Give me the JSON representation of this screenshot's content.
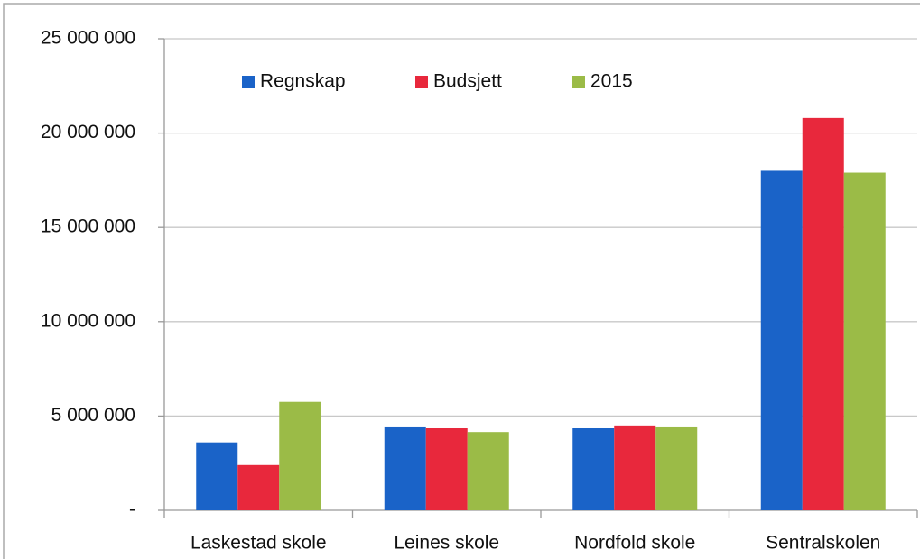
{
  "chart_data": {
    "type": "bar",
    "categories": [
      "Laskestad skole",
      "Leines skole",
      "Nordfold skole",
      "Sentralskolen"
    ],
    "series": [
      {
        "name": "Regnskap",
        "color": "#1a63c8",
        "values": [
          3600000,
          4400000,
          4350000,
          18000000
        ]
      },
      {
        "name": "Budsjett",
        "color": "#e8283c",
        "values": [
          2400000,
          4350000,
          4500000,
          20800000
        ]
      },
      {
        "name": "2015",
        "color": "#9bbb47",
        "values": [
          5750000,
          4150000,
          4400000,
          17900000
        ]
      }
    ],
    "ylim": [
      0,
      25000000
    ],
    "yticks": [
      {
        "value": 0,
        "label": "-"
      },
      {
        "value": 5000000,
        "label": "5 000 000"
      },
      {
        "value": 10000000,
        "label": "10 000 000"
      },
      {
        "value": 15000000,
        "label": "15 000 000"
      },
      {
        "value": 20000000,
        "label": "20 000 000"
      },
      {
        "value": 25000000,
        "label": "25 000 000"
      }
    ],
    "grid": true,
    "legend": "top"
  }
}
